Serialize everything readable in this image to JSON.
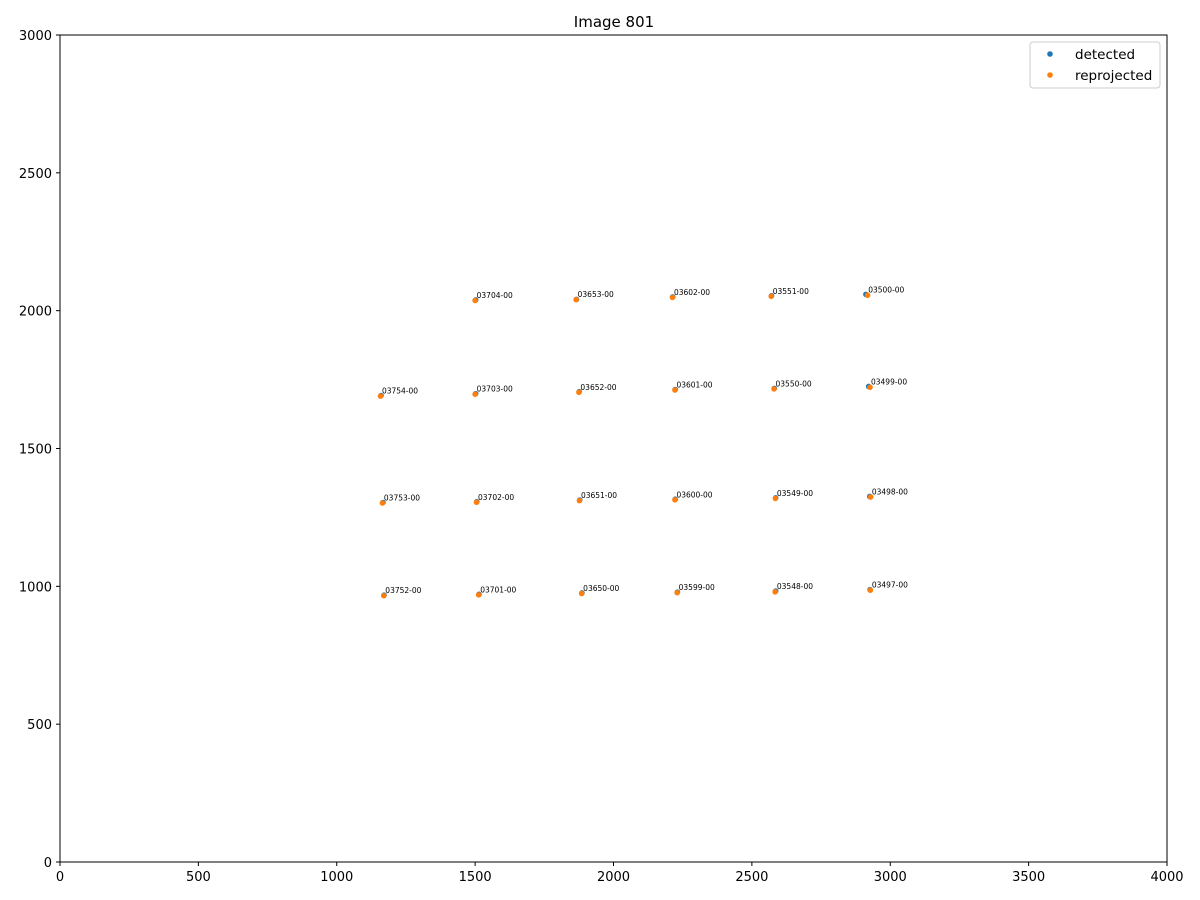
{
  "chart_data": {
    "type": "scatter",
    "title": "Image 801",
    "xlabel": "",
    "ylabel": "",
    "xlim": [
      0,
      4000
    ],
    "ylim": [
      0,
      3000
    ],
    "xticks": [
      0,
      500,
      1000,
      1500,
      2000,
      2500,
      3000,
      3500,
      4000
    ],
    "yticks": [
      0,
      500,
      1000,
      1500,
      2000,
      2500,
      3000
    ],
    "grid": false,
    "legend_position": "top-right",
    "colors": {
      "detected": "#1f77b4",
      "reprojected": "#ff7f0e"
    },
    "points": [
      {
        "label": "03704-00",
        "x": 1500,
        "y": 2037
      },
      {
        "label": "03653-00",
        "x": 1865,
        "y": 2040
      },
      {
        "label": "03602-00",
        "x": 2213,
        "y": 2048
      },
      {
        "label": "03551-00",
        "x": 2570,
        "y": 2052
      },
      {
        "label": "03500-00",
        "x": 2915,
        "y": 2057
      },
      {
        "label": "03754-00",
        "x": 1158,
        "y": 1690
      },
      {
        "label": "03703-00",
        "x": 1500,
        "y": 1697
      },
      {
        "label": "03652-00",
        "x": 1875,
        "y": 1704
      },
      {
        "label": "03601-00",
        "x": 2222,
        "y": 1712
      },
      {
        "label": "03550-00",
        "x": 2580,
        "y": 1716
      },
      {
        "label": "03499-00",
        "x": 2925,
        "y": 1723
      },
      {
        "label": "03753-00",
        "x": 1165,
        "y": 1302
      },
      {
        "label": "03702-00",
        "x": 1505,
        "y": 1305
      },
      {
        "label": "03651-00",
        "x": 1877,
        "y": 1311
      },
      {
        "label": "03600-00",
        "x": 2222,
        "y": 1314
      },
      {
        "label": "03549-00",
        "x": 2585,
        "y": 1319
      },
      {
        "label": "03498-00",
        "x": 2928,
        "y": 1324
      },
      {
        "label": "03752-00",
        "x": 1170,
        "y": 966
      },
      {
        "label": "03701-00",
        "x": 1513,
        "y": 969
      },
      {
        "label": "03650-00",
        "x": 1885,
        "y": 974
      },
      {
        "label": "03599-00",
        "x": 2230,
        "y": 977
      },
      {
        "label": "03548-00",
        "x": 2585,
        "y": 981
      },
      {
        "label": "03497-00",
        "x": 2928,
        "y": 986
      }
    ],
    "series": [
      {
        "name": "detected",
        "values": [
          [
            1502,
            2039
          ],
          [
            1866,
            2041
          ],
          [
            2214,
            2050
          ],
          [
            2571,
            2054
          ],
          [
            2912,
            2059
          ],
          [
            1160,
            1692
          ],
          [
            1502,
            1699
          ],
          [
            1876,
            1706
          ],
          [
            2223,
            1714
          ],
          [
            2581,
            1718
          ],
          [
            2922,
            1725
          ],
          [
            1167,
            1304
          ],
          [
            1506,
            1307
          ],
          [
            1878,
            1313
          ],
          [
            2223,
            1316
          ],
          [
            2586,
            1321
          ],
          [
            2926,
            1326
          ],
          [
            1171,
            968
          ],
          [
            1514,
            971
          ],
          [
            1886,
            976
          ],
          [
            2231,
            979
          ],
          [
            2586,
            983
          ],
          [
            2927,
            988
          ]
        ]
      },
      {
        "name": "reprojected",
        "values": [
          [
            1500,
            2037
          ],
          [
            1865,
            2040
          ],
          [
            2213,
            2048
          ],
          [
            2570,
            2052
          ],
          [
            2918,
            2056
          ],
          [
            1158,
            1690
          ],
          [
            1500,
            1697
          ],
          [
            1875,
            1704
          ],
          [
            2222,
            1712
          ],
          [
            2580,
            1716
          ],
          [
            2927,
            1722
          ],
          [
            1165,
            1302
          ],
          [
            1505,
            1305
          ],
          [
            1877,
            1311
          ],
          [
            2222,
            1314
          ],
          [
            2585,
            1319
          ],
          [
            2929,
            1324
          ],
          [
            1170,
            966
          ],
          [
            1513,
            969
          ],
          [
            1885,
            974
          ],
          [
            2230,
            977
          ],
          [
            2584,
            980
          ],
          [
            2928,
            986
          ]
        ]
      }
    ]
  }
}
